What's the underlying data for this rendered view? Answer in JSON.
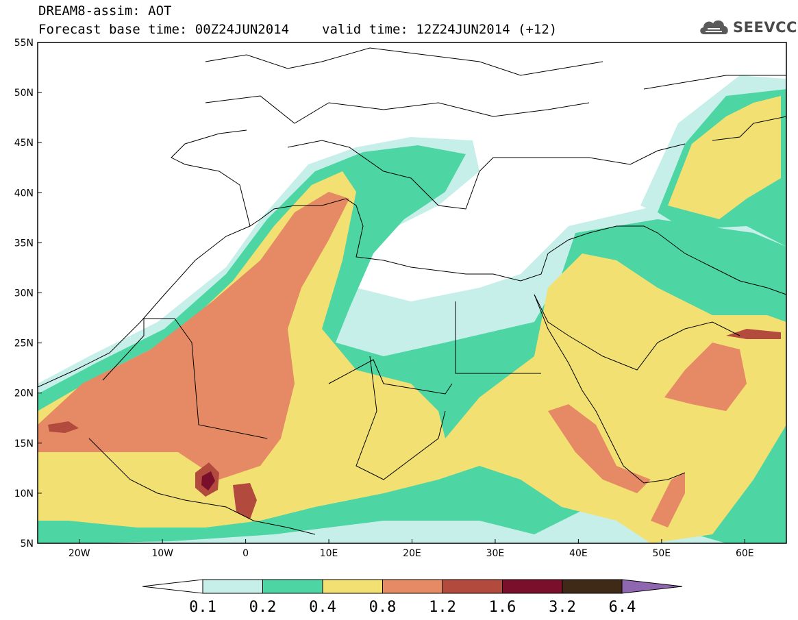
{
  "header": {
    "title": "DREAM8-assim: AOT",
    "base_time": "Forecast base time: 00Z24JUN2014",
    "valid_time": "valid time: 12Z24JUN2014 (+12)",
    "logo_text": "SEEVCCC"
  },
  "map": {
    "lon_range": [
      -25,
      65
    ],
    "lat_range": [
      5,
      55
    ],
    "lon_ticks": [
      {
        "value": -20,
        "label": "20W"
      },
      {
        "value": -10,
        "label": "10W"
      },
      {
        "value": 0,
        "label": "0"
      },
      {
        "value": 10,
        "label": "10E"
      },
      {
        "value": 20,
        "label": "20E"
      },
      {
        "value": 30,
        "label": "30E"
      },
      {
        "value": 40,
        "label": "40E"
      },
      {
        "value": 50,
        "label": "50E"
      },
      {
        "value": 60,
        "label": "60E"
      }
    ],
    "lat_ticks": [
      {
        "value": 55,
        "label": "55N"
      },
      {
        "value": 50,
        "label": "50N"
      },
      {
        "value": 45,
        "label": "45N"
      },
      {
        "value": 40,
        "label": "40N"
      },
      {
        "value": 35,
        "label": "35N"
      },
      {
        "value": 30,
        "label": "30N"
      },
      {
        "value": 25,
        "label": "25N"
      },
      {
        "value": 20,
        "label": "20N"
      },
      {
        "value": 15,
        "label": "15N"
      },
      {
        "value": 10,
        "label": "10N"
      },
      {
        "value": 5,
        "label": "5N"
      }
    ]
  },
  "colorbar": {
    "labels": [
      "0.1",
      "0.2",
      "0.4",
      "0.8",
      "1.2",
      "1.6",
      "3.2",
      "6.4"
    ],
    "colors": [
      "#c6efe9",
      "#4dd6a4",
      "#f3e073",
      "#e58a64",
      "#b24a3e",
      "#7a0f2b",
      "#3f2a17",
      "#8f67b0"
    ],
    "under_color": "#ffffff"
  }
}
